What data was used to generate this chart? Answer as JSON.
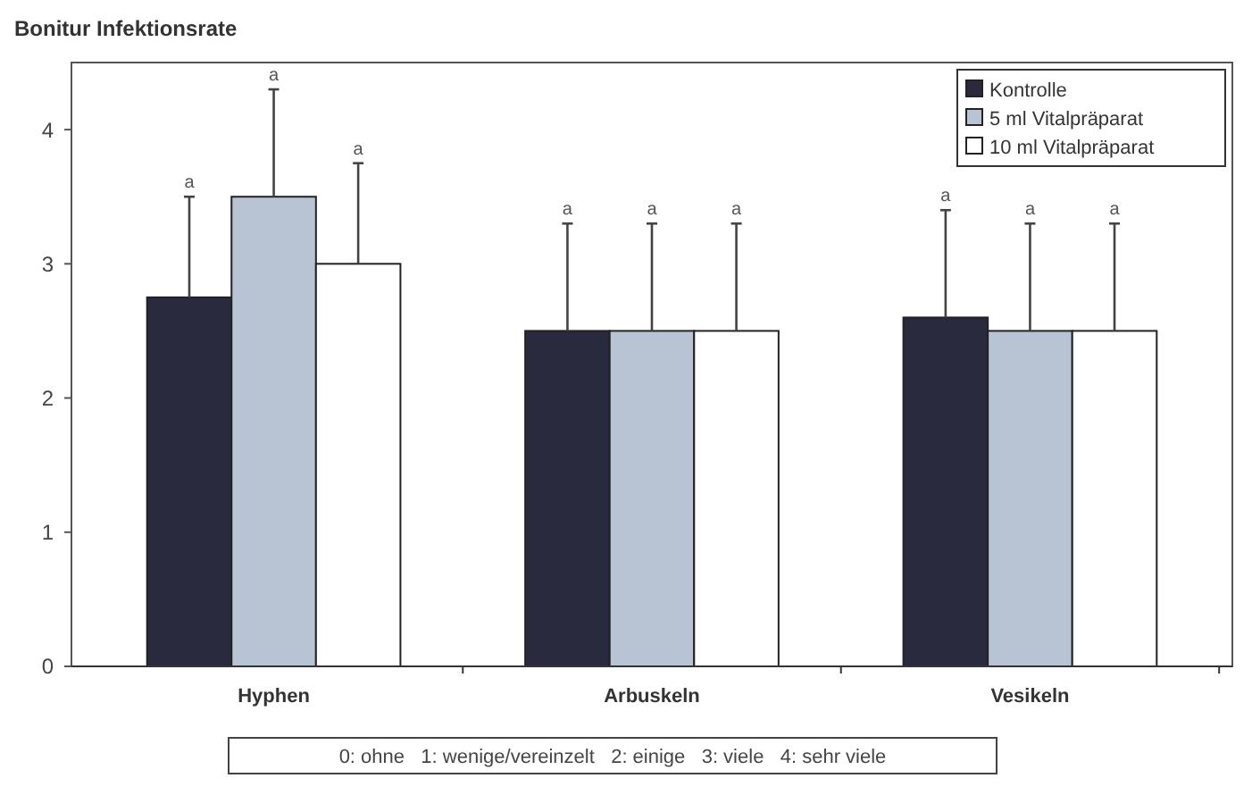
{
  "chart_data": {
    "type": "bar",
    "title": "Bonitur Infektionsrate",
    "categories": [
      "Hyphen",
      "Arbuskeln",
      "Vesikeln"
    ],
    "series": [
      {
        "name": "Kontrolle",
        "color": "#2a2a3e",
        "values": [
          2.75,
          2.5,
          2.6
        ],
        "errors": [
          0.75,
          0.8,
          0.8
        ]
      },
      {
        "name": "5 ml Vitalpräparat",
        "color": "#b8c4d4",
        "values": [
          3.5,
          2.5,
          2.5
        ],
        "errors": [
          0.8,
          0.8,
          0.8
        ]
      },
      {
        "name": "10 ml Vitalpräparat",
        "color": "#ffffff",
        "values": [
          3.0,
          2.5,
          2.5
        ],
        "errors": [
          0.75,
          0.8,
          0.8
        ]
      }
    ],
    "ylim": [
      0,
      4.5
    ],
    "yticks": [
      0,
      1,
      2,
      3,
      4
    ],
    "grid": false,
    "legend": "top right",
    "annotations": [
      "a",
      "a",
      "a",
      "a",
      "a",
      "a",
      "a",
      "a",
      "a",
      "0: ohne   1: wenige/vereinzelt   2: einige   3: viele   4: sehr viele"
    ]
  }
}
